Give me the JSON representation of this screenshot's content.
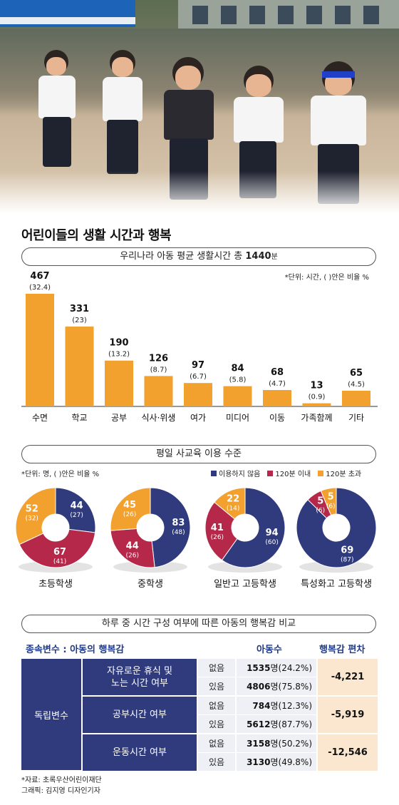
{
  "title": "어린이들의 생활 시간과 행복",
  "colors": {
    "bar": "#f2a12e",
    "none": "#303b7e",
    "under120": "#b5284a",
    "over120": "#f2a12e",
    "table_dark": "#303b7e",
    "table_light": "#eef0f6",
    "table_accent": "#fbe7cf",
    "header_text": "#1f3a8a"
  },
  "bar_section": {
    "header_prefix": "우리나라 아동 평균 생활시간  총 ",
    "header_value": "1440",
    "header_unit": "분",
    "note": "*단위: 시간, ( )안은 비율 %"
  },
  "donut_section": {
    "header": "평일 사교육 이용 수준",
    "note": "*단위: 명, ( )안은 비율 %",
    "legend": [
      "이용하지 않음",
      "120분 이내",
      "120분 초과"
    ]
  },
  "table_section": {
    "header": "하루 중 시간 구성 여부에 따른 아동의 행복감 비교",
    "col_dependent": "종속변수 : 아동의 행복감",
    "col_count": "아동수",
    "col_deviation": "행복감 편차",
    "independent_label": "독립변수",
    "count_unit": "명",
    "rows": [
      {
        "variable": "자유로운 휴식 및\n노는 시간 여부",
        "deviation": "-4,221",
        "entries": [
          {
            "yn": "없음",
            "count": "1535",
            "pct": "(24.2%)"
          },
          {
            "yn": "있음",
            "count": "4806",
            "pct": "(75.8%)"
          }
        ]
      },
      {
        "variable": "공부시간 여부",
        "deviation": "-5,919",
        "entries": [
          {
            "yn": "없음",
            "count": "784",
            "pct": "(12.3%)"
          },
          {
            "yn": "있음",
            "count": "5612",
            "pct": "(87.7%)"
          }
        ]
      },
      {
        "variable": "운동시간 여부",
        "deviation": "-12,546",
        "entries": [
          {
            "yn": "없음",
            "count": "3158",
            "pct": "(50.2%)"
          },
          {
            "yn": "있음",
            "count": "3130",
            "pct": "(49.8%)"
          }
        ]
      }
    ]
  },
  "source": {
    "line1": "*자료: 초록우산어린이재단",
    "line2": "그래픽: 김지영 디자인기자"
  },
  "chart_data": [
    {
      "type": "bar",
      "categories": [
        "수면",
        "학교",
        "공부",
        "식사·위생",
        "여가",
        "미디어",
        "이동",
        "가족함께",
        "기타"
      ],
      "values": [
        467,
        331,
        190,
        126,
        97,
        84,
        68,
        13,
        65
      ],
      "value_labels": [
        "467",
        "331",
        "190",
        "126",
        "97",
        "84",
        "68",
        "13",
        "65"
      ],
      "pct_labels": [
        "(32.4)",
        "(23)",
        "(13.2)",
        "(8.7)",
        "(6.7)",
        "(5.8)",
        "(4.7)",
        "(0.9)",
        "(4.5)"
      ],
      "ylim": [
        0,
        467
      ],
      "grid": false
    },
    {
      "type": "pie",
      "style": "donut",
      "series_names": [
        "이용하지 않음",
        "120분 이내",
        "120분 초과"
      ],
      "groups": [
        {
          "label": "초등학생",
          "values": [
            44,
            67,
            52
          ],
          "pcts": [
            "(27)",
            "(41)",
            "(32)"
          ]
        },
        {
          "label": "중학생",
          "values": [
            83,
            44,
            45
          ],
          "pcts": [
            "(48)",
            "(26)",
            "(26)"
          ]
        },
        {
          "label": "일반고 고등학생",
          "values": [
            94,
            41,
            22
          ],
          "pcts": [
            "(60)",
            "(26)",
            "(14)"
          ]
        },
        {
          "label": "특성화고 고등학생",
          "values": [
            69,
            5,
            5
          ],
          "pcts": [
            "(87)",
            "(6)",
            "(6)"
          ]
        }
      ]
    }
  ]
}
